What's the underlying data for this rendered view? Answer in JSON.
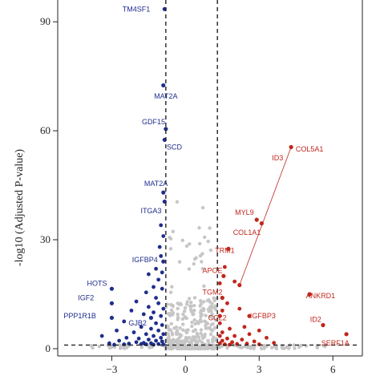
{
  "chart_data": {
    "type": "scatter",
    "title": "",
    "xlabel": "",
    "ylabel": "-log10 (Adjusted P-value)",
    "xlim": [
      -5.2,
      7.2
    ],
    "ylim": [
      -2,
      96
    ],
    "x_ticks": [
      -3,
      0,
      3,
      6
    ],
    "y_ticks": [
      0,
      30,
      60,
      90
    ],
    "grid": false,
    "legend": "none",
    "thresholds": {
      "x": [
        -0.8,
        1.3
      ],
      "y": 1
    },
    "colors": {
      "down": "#1f2e8c",
      "up": "#c0261c",
      "ns": "#c6c6c6"
    },
    "labeled_genes": [
      {
        "name": "TM4SF1",
        "x": -0.85,
        "y": 93.5,
        "group": "down",
        "lx": -2.0,
        "ly": 93.5
      },
      {
        "name": "MAT2A",
        "x": -0.9,
        "y": 72.5,
        "group": "down",
        "lx": -0.8,
        "ly": 69.5
      },
      {
        "name": "GDF15",
        "x": -0.8,
        "y": 60.5,
        "group": "down",
        "lx": -1.3,
        "ly": 62.5
      },
      {
        "name": "SCD",
        "x": -0.85,
        "y": 57.5,
        "group": "down",
        "lx": -0.45,
        "ly": 55.5
      },
      {
        "name": "MAT2A",
        "x": -0.9,
        "y": 43,
        "group": "down",
        "lx": -1.2,
        "ly": 45.5
      },
      {
        "name": "ITGA3",
        "x": -0.85,
        "y": 40.5,
        "group": "down",
        "lx": -1.4,
        "ly": 38
      },
      {
        "name": "IGFBP4",
        "x": -0.9,
        "y": 24,
        "group": "down",
        "lx": -1.65,
        "ly": 24.5
      },
      {
        "name": "HOTS",
        "x": -3.0,
        "y": 16.5,
        "group": "down",
        "lx": -3.6,
        "ly": 18
      },
      {
        "name": "IGF2",
        "x": -3.0,
        "y": 12.5,
        "group": "down",
        "lx": -4.05,
        "ly": 14
      },
      {
        "name": "PPP1R1B",
        "x": -3.0,
        "y": 8.5,
        "group": "down",
        "lx": -4.3,
        "ly": 9
      },
      {
        "name": "GJB2",
        "x": -1.4,
        "y": 8.5,
        "group": "down",
        "lx": -1.95,
        "ly": 7
      },
      {
        "name": "COL5A1",
        "x": 4.3,
        "y": 55.5,
        "group": "up",
        "lx": 5.05,
        "ly": 55
      },
      {
        "name": "ID3",
        "x": 2.2,
        "y": 17.5,
        "group": "up",
        "lx": 3.75,
        "ly": 52.5
      },
      {
        "name": "MYL9",
        "x": 2.9,
        "y": 35.5,
        "group": "up",
        "lx": 2.4,
        "ly": 37.5
      },
      {
        "name": "COL1A1",
        "x": 3.1,
        "y": 34.5,
        "group": "up",
        "lx": 2.5,
        "ly": 32
      },
      {
        "name": "TRM1",
        "x": 1.75,
        "y": 27.5,
        "group": "up",
        "lx": 1.6,
        "ly": 27
      },
      {
        "name": "APOE",
        "x": 1.55,
        "y": 20,
        "group": "up",
        "lx": 1.1,
        "ly": 21.5
      },
      {
        "name": "TGM2",
        "x": 1.5,
        "y": 14,
        "group": "up",
        "lx": 1.1,
        "ly": 15.5
      },
      {
        "name": "CCL2",
        "x": 1.4,
        "y": 9,
        "group": "up",
        "lx": 1.3,
        "ly": 8.5
      },
      {
        "name": "IGFBP3",
        "x": 2.6,
        "y": 9,
        "group": "up",
        "lx": 3.15,
        "ly": 9
      },
      {
        "name": "ANKRD1",
        "x": 5.05,
        "y": 15,
        "group": "up",
        "lx": 5.5,
        "ly": 14.5
      },
      {
        "name": "ID2",
        "x": 5.6,
        "y": 6.5,
        "group": "up",
        "lx": 5.3,
        "ly": 8
      },
      {
        "name": "SERF1A",
        "x": 6.55,
        "y": 4,
        "group": "up",
        "lx": 6.1,
        "ly": 1.5
      }
    ],
    "extra_points": {
      "down": [
        [
          -1.0,
          34
        ],
        [
          -0.9,
          31
        ],
        [
          -1.05,
          28
        ],
        [
          -1.0,
          25.5
        ],
        [
          -1.2,
          22
        ],
        [
          -0.95,
          21
        ],
        [
          -1.5,
          20.5
        ],
        [
          -1.1,
          19
        ],
        [
          -1.3,
          17
        ],
        [
          -0.95,
          16.5
        ],
        [
          -1.6,
          15.5
        ],
        [
          -1.2,
          14
        ],
        [
          -2.0,
          13
        ],
        [
          -1.1,
          12.5
        ],
        [
          -1.5,
          11.5
        ],
        [
          -0.9,
          11
        ],
        [
          -2.2,
          10.5
        ],
        [
          -1.3,
          10
        ],
        [
          -1.0,
          9
        ],
        [
          -1.7,
          9.5
        ],
        [
          -2.5,
          7.5
        ],
        [
          -1.2,
          7
        ],
        [
          -0.95,
          6.5
        ],
        [
          -1.8,
          6
        ],
        [
          -1.4,
          5.5
        ],
        [
          -2.8,
          5
        ],
        [
          -1.1,
          5
        ],
        [
          -2.1,
          4.5
        ],
        [
          -1.6,
          4
        ],
        [
          -0.9,
          4
        ],
        [
          -3.4,
          3.5
        ],
        [
          -1.3,
          3.5
        ],
        [
          -2.4,
          3
        ],
        [
          -1.9,
          2.8
        ],
        [
          -1.0,
          3
        ],
        [
          -1.5,
          2.5
        ],
        [
          -2.7,
          2.2
        ],
        [
          -1.2,
          2.2
        ],
        [
          -0.95,
          2
        ],
        [
          -2.0,
          1.8
        ],
        [
          -1.7,
          1.6
        ],
        [
          -3.1,
          1.5
        ],
        [
          -1.4,
          1.5
        ],
        [
          -2.3,
          1.4
        ],
        [
          -1.1,
          1.3
        ],
        [
          -1.8,
          1.3
        ],
        [
          -0.9,
          1.2
        ],
        [
          -1.6,
          1.2
        ],
        [
          -2.5,
          1.2
        ],
        [
          -1.3,
          1.1
        ],
        [
          -2.9,
          1.1
        ]
      ],
      "up": [
        [
          1.6,
          22.5
        ],
        [
          2.0,
          18.5
        ],
        [
          1.4,
          18
        ],
        [
          1.7,
          12.5
        ],
        [
          1.5,
          10.5
        ],
        [
          2.2,
          11
        ],
        [
          1.4,
          7
        ],
        [
          2.4,
          6
        ],
        [
          1.8,
          5.5
        ],
        [
          3.0,
          5
        ],
        [
          1.5,
          4.5
        ],
        [
          2.6,
          4
        ],
        [
          2.0,
          3.5
        ],
        [
          1.4,
          3.5
        ],
        [
          3.3,
          3
        ],
        [
          1.7,
          2.8
        ],
        [
          2.3,
          2.5
        ],
        [
          1.5,
          2.2
        ],
        [
          2.8,
          2.0
        ],
        [
          1.9,
          1.8
        ],
        [
          3.6,
          1.6
        ],
        [
          1.4,
          1.5
        ],
        [
          2.5,
          1.4
        ],
        [
          2.1,
          1.3
        ],
        [
          1.6,
          1.2
        ],
        [
          3.0,
          1.2
        ],
        [
          1.8,
          1.1
        ]
      ],
      "ns_count": 420
    }
  }
}
